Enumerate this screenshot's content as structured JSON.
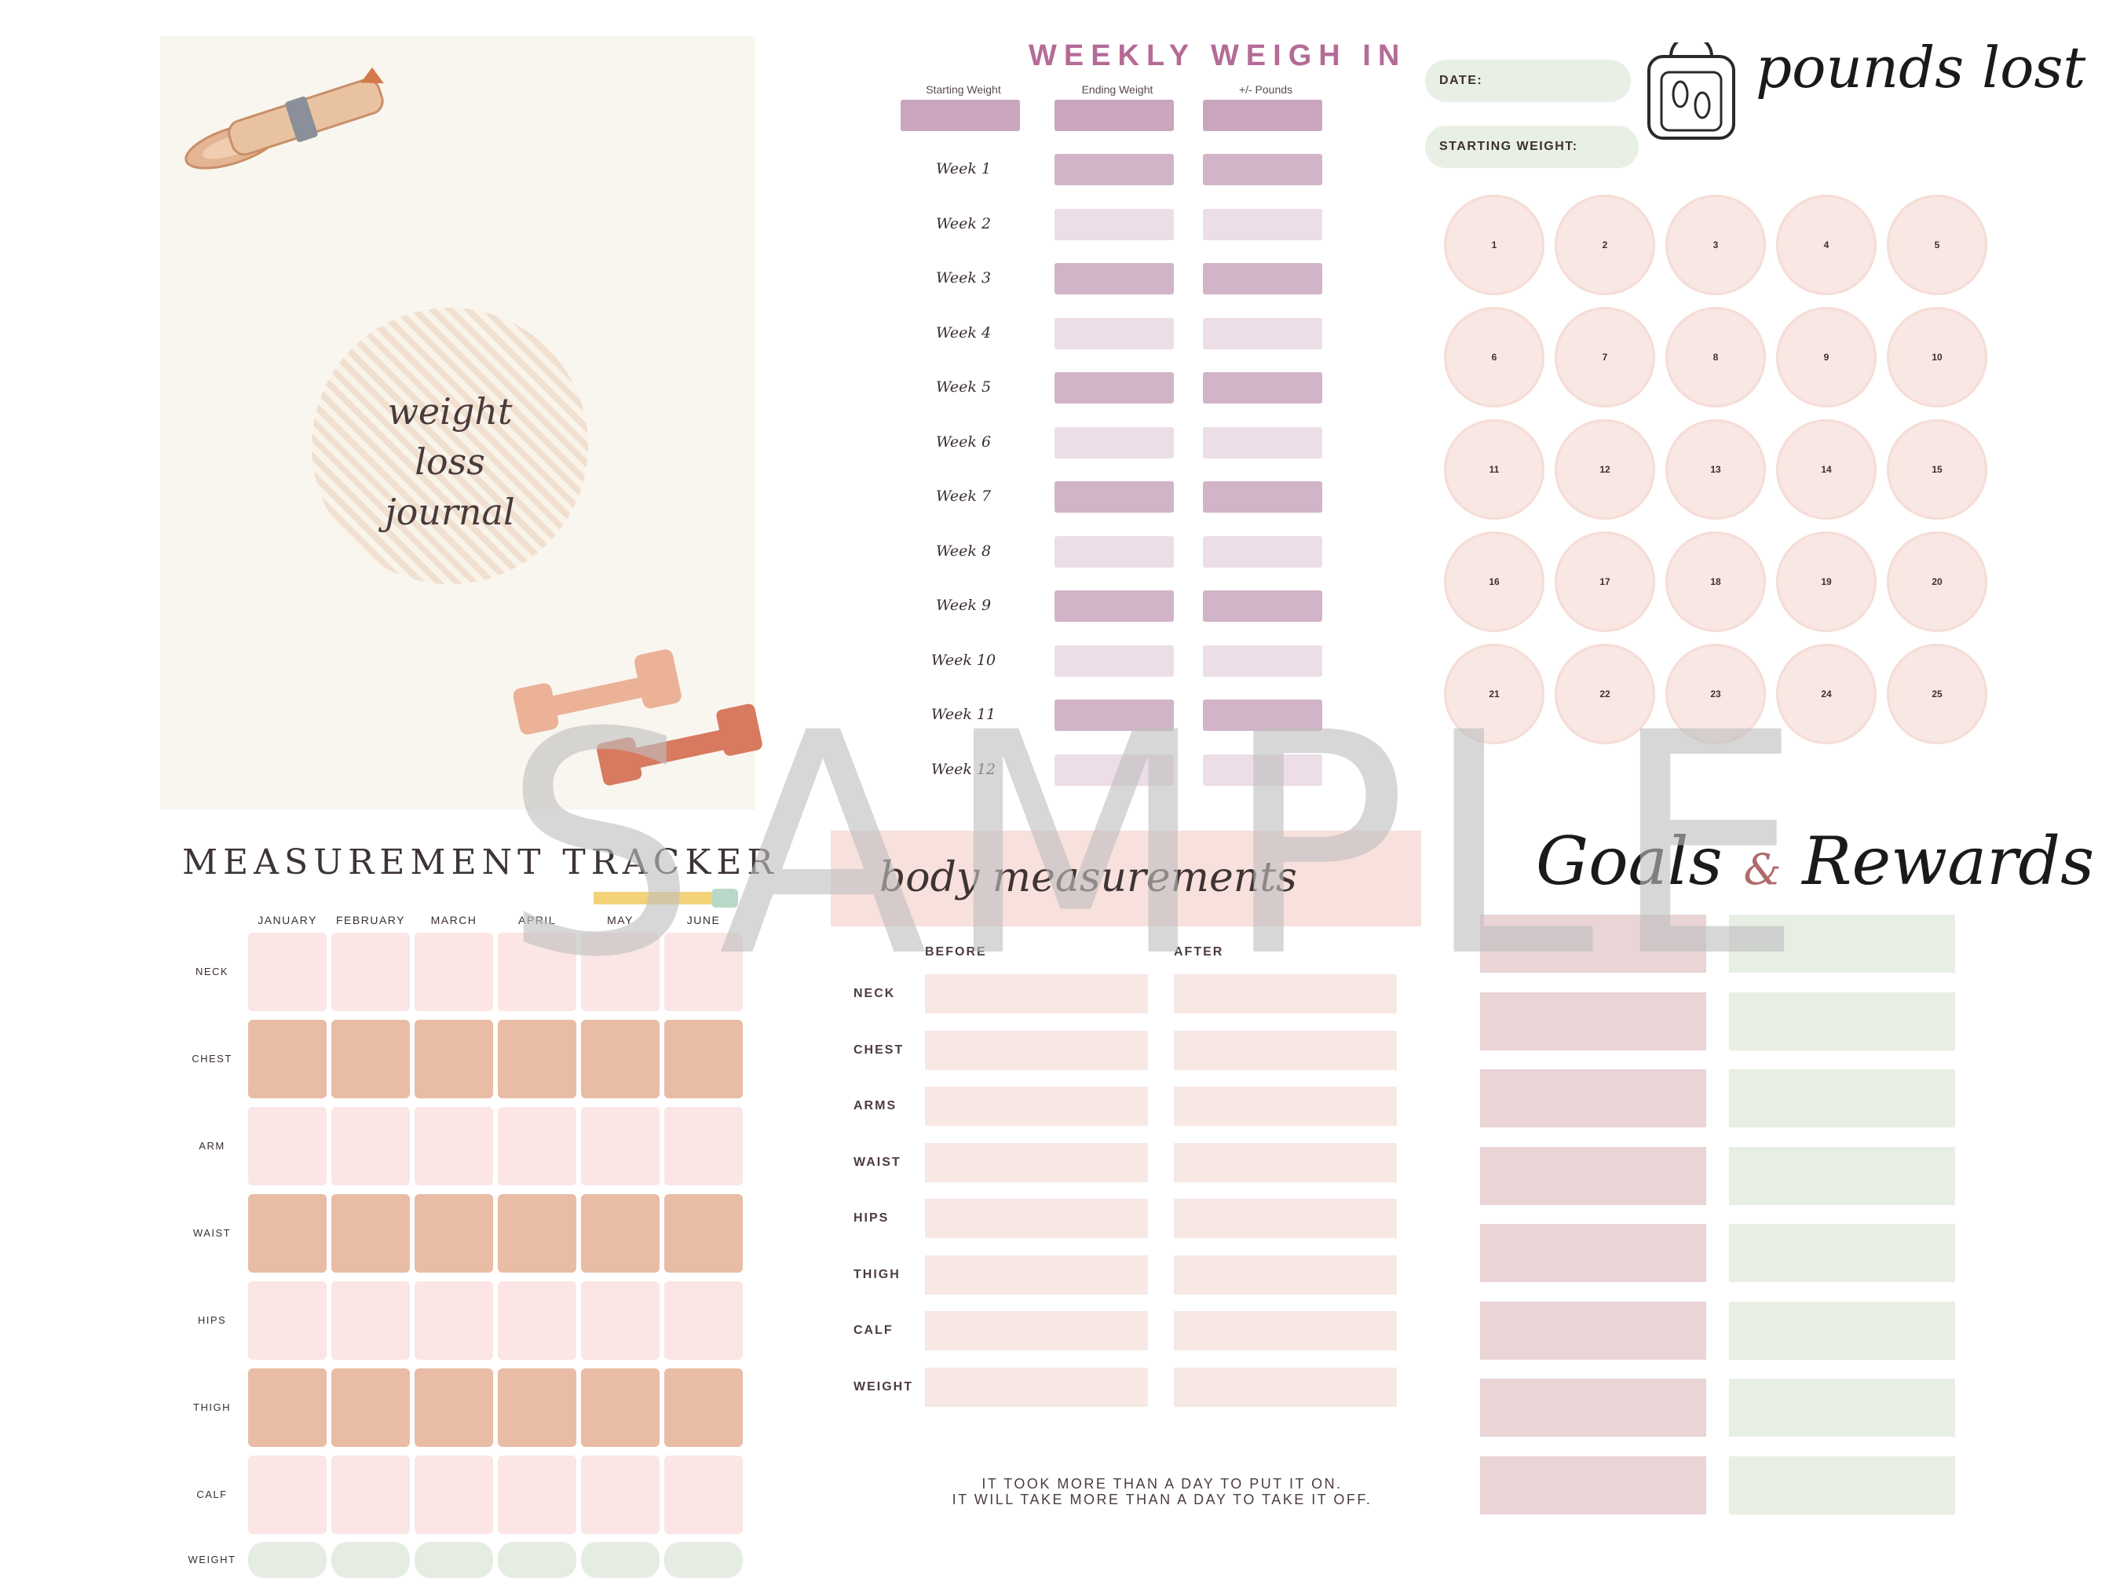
{
  "cover": {
    "title": "weight\nloss\njournal"
  },
  "weekly": {
    "title": "WEEKLY WEIGH IN",
    "columns": [
      "Starting Weight",
      "Ending Weight",
      "+/- Pounds"
    ],
    "weeks": [
      "Week 1",
      "Week 2",
      "Week 3",
      "Week 4",
      "Week 5",
      "Week 6",
      "Week 7",
      "Week 8",
      "Week 9",
      "Week 10",
      "Week 11",
      "Week 12"
    ]
  },
  "pounds": {
    "date_label": "DATE:",
    "start_label": "STARTING WEIGHT:",
    "title": "pounds lost",
    "numbers": [
      "1",
      "2",
      "3",
      "4",
      "5",
      "6",
      "7",
      "8",
      "9",
      "10",
      "11",
      "12",
      "13",
      "14",
      "15",
      "16",
      "17",
      "18",
      "19",
      "20",
      "21",
      "22",
      "23",
      "24",
      "25"
    ]
  },
  "tracker": {
    "title": "MEASUREMENT TRACKER",
    "months": [
      "JANUARY",
      "FEBRUARY",
      "MARCH",
      "APRIL",
      "MAY",
      "JUNE"
    ],
    "rows": [
      "NECK",
      "CHEST",
      "ARM",
      "WAIST",
      "HIPS",
      "THIGH",
      "CALF",
      "WEIGHT"
    ]
  },
  "body": {
    "title": "body measurements",
    "before": "BEFORE",
    "after": "AFTER",
    "rows": [
      "NECK",
      "CHEST",
      "ARMS",
      "WAIST",
      "HIPS",
      "THIGH",
      "CALF",
      "WEIGHT"
    ],
    "quote_line1": "IT TOOK MORE THAN A DAY TO PUT IT ON.",
    "quote_line2": "IT WILL TAKE MORE THAN A DAY TO TAKE IT OFF."
  },
  "goals": {
    "goals_word": "Goals",
    "amp": "&",
    "rewards_word": "Rewards"
  },
  "watermark": "SAMPLE",
  "colors": {
    "mauve": "#b46b96",
    "tan": "#e8bca5",
    "pink": "#fbe5e5",
    "sage": "#e5ede3"
  }
}
